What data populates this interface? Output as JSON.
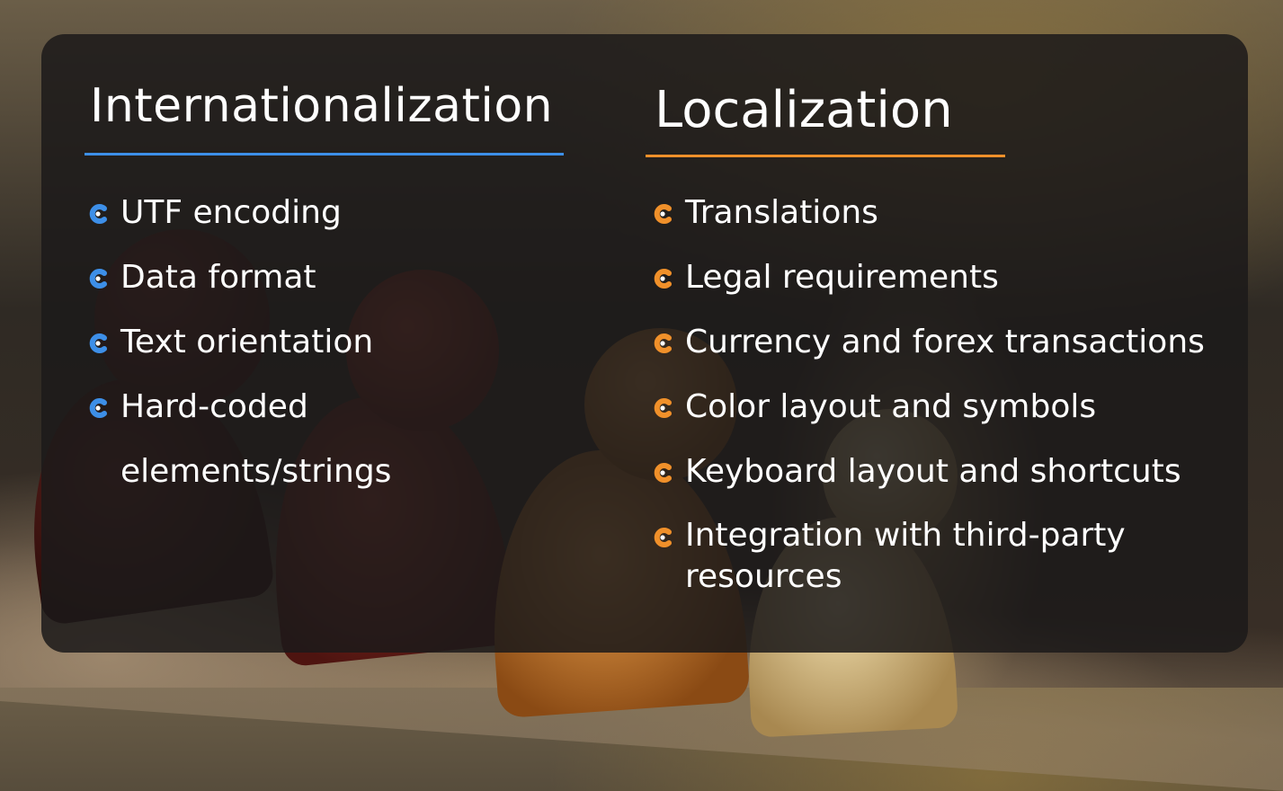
{
  "colors": {
    "internationalization_accent": "#3d8fe8",
    "localization_accent": "#f0902a",
    "panel_background": "rgba(28,26,26,0.86)",
    "text": "#ffffff"
  },
  "internationalization": {
    "title": "Internationalization",
    "bullet_icon": "crescent-c-bullet-blue",
    "items": [
      "UTF encoding",
      "Data format",
      "Text orientation",
      {
        "line1": "Hard-coded",
        "line2": "elements/strings"
      }
    ]
  },
  "localization": {
    "title": "Localization",
    "bullet_icon": "crescent-c-bullet-orange",
    "items": [
      "Translations",
      "Legal requirements",
      "Currency and forex transactions",
      "Color layout and symbols",
      "Keyboard layout and shortcuts",
      "Integration with third-party resources"
    ]
  }
}
